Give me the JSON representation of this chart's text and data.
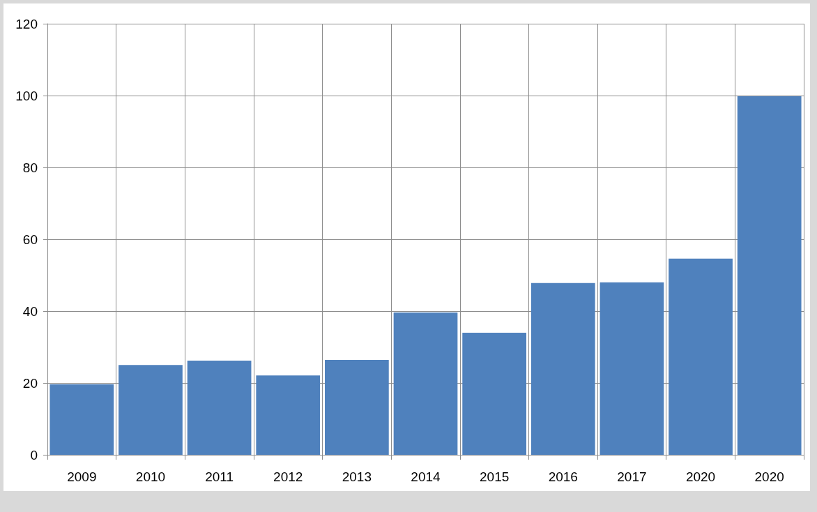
{
  "chart_data": {
    "type": "bar",
    "categories": [
      "2009",
      "2010",
      "2011",
      "2012",
      "2013",
      "2014",
      "2015",
      "2016",
      "2017",
      "2020",
      "2020"
    ],
    "values": [
      19.6,
      25.0,
      26.2,
      22.1,
      26.4,
      39.6,
      34.0,
      47.8,
      48.0,
      54.6,
      99.8
    ],
    "color": "#4f81bd",
    "ylim": [
      0,
      120
    ],
    "yticks": [
      0,
      20,
      40,
      60,
      80,
      100,
      120
    ],
    "grid": true
  }
}
